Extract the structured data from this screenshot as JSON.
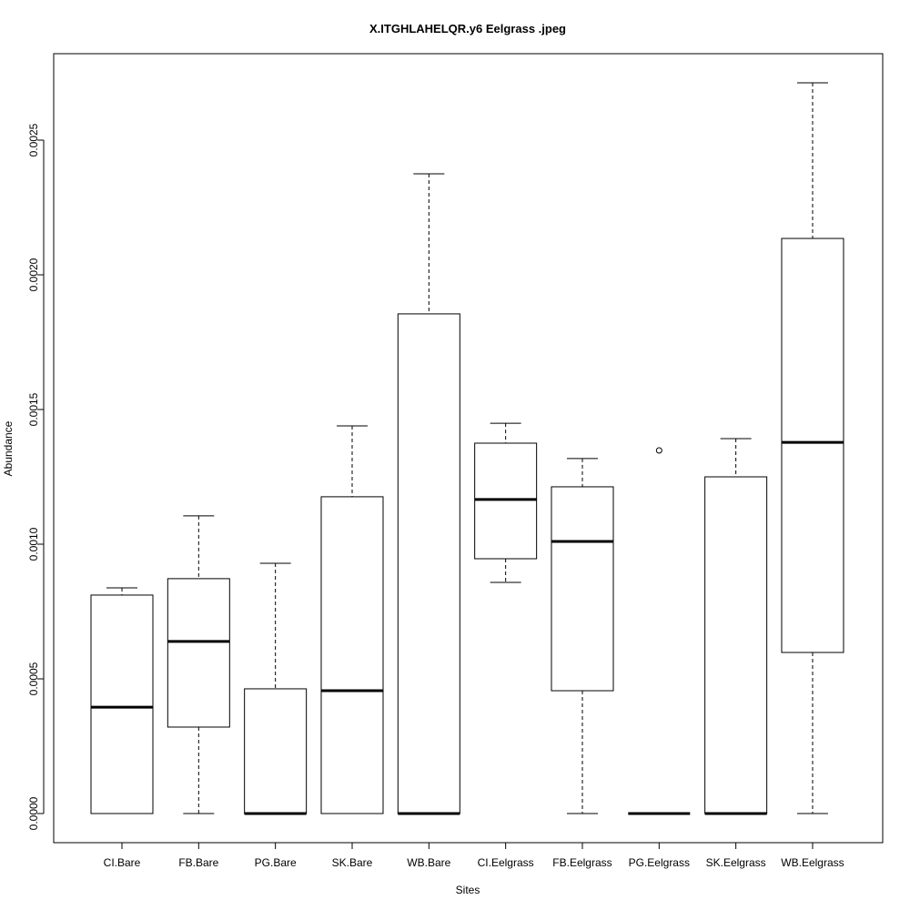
{
  "chart_data": {
    "type": "boxplot",
    "title": "X.ITGHLAHELQR.y6 Eelgrass .jpeg",
    "xlabel": "Sites",
    "ylabel": "Abundance",
    "ylim": [
      -0.0001,
      0.00283
    ],
    "yticks": [
      0,
      0.0005,
      0.001,
      0.0015,
      0.002,
      0.0025
    ],
    "ytick_labels": [
      "0.0000",
      "0.0005",
      "0.0010",
      "0.0015",
      "0.0020",
      "0.0025"
    ],
    "grid": false,
    "categories": [
      "CI.Bare",
      "FB.Bare",
      "PG.Bare",
      "SK.Bare",
      "WB.Bare",
      "CI.Eelgrass",
      "FB.Eelgrass",
      "PG.Eelgrass",
      "SK.Eelgrass",
      "WB.Eelgrass"
    ],
    "boxes": [
      {
        "low": 0,
        "q1": 0,
        "median": 0.000395,
        "q3": 0.000811,
        "high": 0.000838,
        "outliers": []
      },
      {
        "low": 0,
        "q1": 0.000321,
        "median": 0.000639,
        "q3": 0.000872,
        "high": 0.001105,
        "outliers": []
      },
      {
        "low": 0,
        "q1": 0,
        "median": 0,
        "q3": 0.000463,
        "high": 0.000929,
        "outliers": []
      },
      {
        "low": 0,
        "q1": 0,
        "median": 0.000456,
        "q3": 0.001176,
        "high": 0.001439,
        "outliers": []
      },
      {
        "low": 0,
        "q1": 0,
        "median": 0,
        "q3": 0.001855,
        "high": 0.002375,
        "outliers": []
      },
      {
        "low": 0.000858,
        "q1": 0.000946,
        "median": 0.001166,
        "q3": 0.001375,
        "high": 0.001449,
        "outliers": []
      },
      {
        "low": 0,
        "q1": 0.000456,
        "median": 0.00101,
        "q3": 0.001213,
        "high": 0.001318,
        "outliers": []
      },
      {
        "low": 0,
        "q1": 0,
        "median": 0,
        "q3": 0,
        "high": 0,
        "outliers": [
          0.001348
        ]
      },
      {
        "low": 0,
        "q1": 0,
        "median": 0,
        "q3": 0.00125,
        "high": 0.001392,
        "outliers": []
      },
      {
        "low": 0,
        "q1": 0.000598,
        "median": 0.001378,
        "q3": 0.002135,
        "high": 0.002713,
        "outliers": []
      }
    ]
  }
}
